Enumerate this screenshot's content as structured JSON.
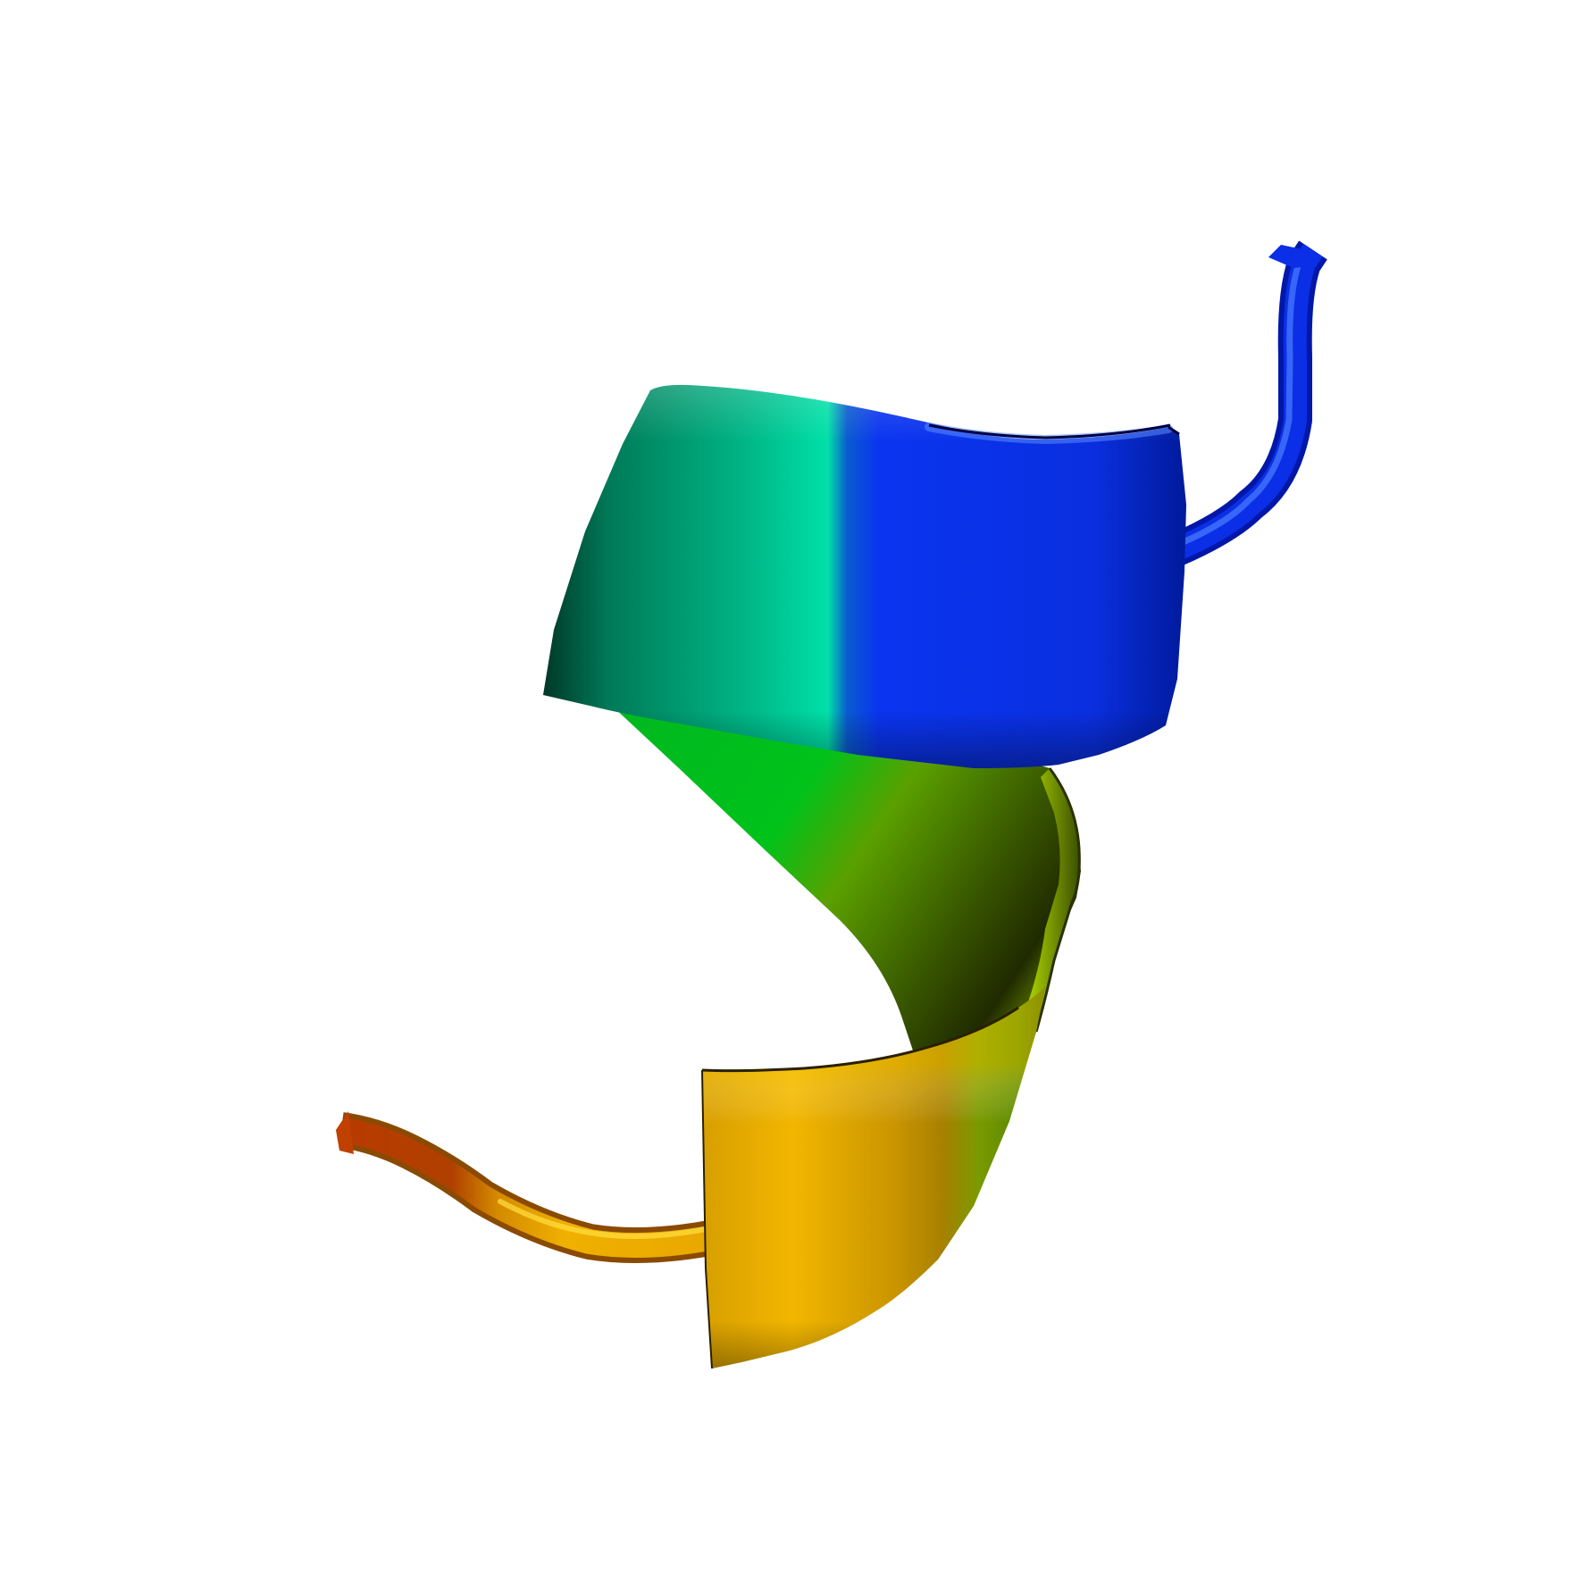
{
  "image": {
    "subject": "protein-cartoon",
    "background": "#ffffff"
  },
  "colors": {
    "blue": "#0a2fe6",
    "blue_dark": "#0017a8",
    "blue_highlight": "#4a7dff",
    "teal": "#00c896",
    "teal_dark": "#005a40",
    "green": "#00c21a",
    "green_dark": "#0a5a10",
    "yellow_green": "#a8e000",
    "olive_dark": "#2a3000",
    "gold": "#f5b800",
    "gold_dark": "#a07000",
    "orange_red": "#b83a00"
  }
}
